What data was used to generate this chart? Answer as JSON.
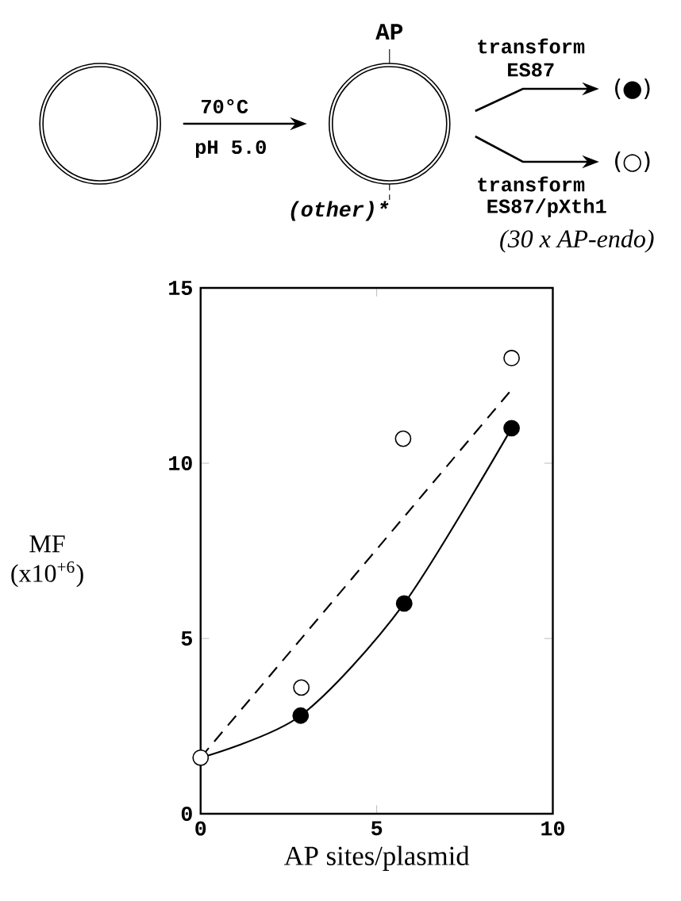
{
  "chart_data": {
    "type": "scatter",
    "xlabel": "AP sites/plasmid",
    "ylabel": "MF (x10$^{+6}$)",
    "xlim": [
      0,
      10
    ],
    "ylim": [
      0,
      15
    ],
    "xticks": [
      0,
      5,
      10
    ],
    "yticks": [
      0,
      5,
      10,
      15
    ],
    "grid": false,
    "series": [
      {
        "type": "line",
        "x": [
          0,
          2.84,
          5.78,
          8.83
        ],
        "values": [
          1.6,
          2.8,
          6.0,
          11.0
        ],
        "color": "#000000",
        "line_style": "solid",
        "marker": "none"
      },
      {
        "type": "line",
        "x": [
          0,
          8.83
        ],
        "values": [
          1.6,
          12.1
        ],
        "color": "#000000",
        "line_style": "dashed",
        "marker": "none"
      },
      {
        "x": [
          2.84,
          5.78,
          8.83
        ],
        "values": [
          2.8,
          6.0,
          11.0
        ],
        "color": "#000000",
        "marker": "circle"
      },
      {
        "x": [
          0,
          2.86,
          5.75,
          8.83
        ],
        "values": [
          1.6,
          3.6,
          10.7,
          13.0
        ],
        "color": "#ffffff",
        "marker": "circle"
      }
    ],
    "annotations": [
      "70°C",
      "pH 5.0",
      "AP",
      "(other)*",
      "transform",
      "ES87",
      "(●)",
      "(○)",
      "transform",
      "ES87/pXth1",
      "(30 x AP-endo)"
    ]
  }
}
